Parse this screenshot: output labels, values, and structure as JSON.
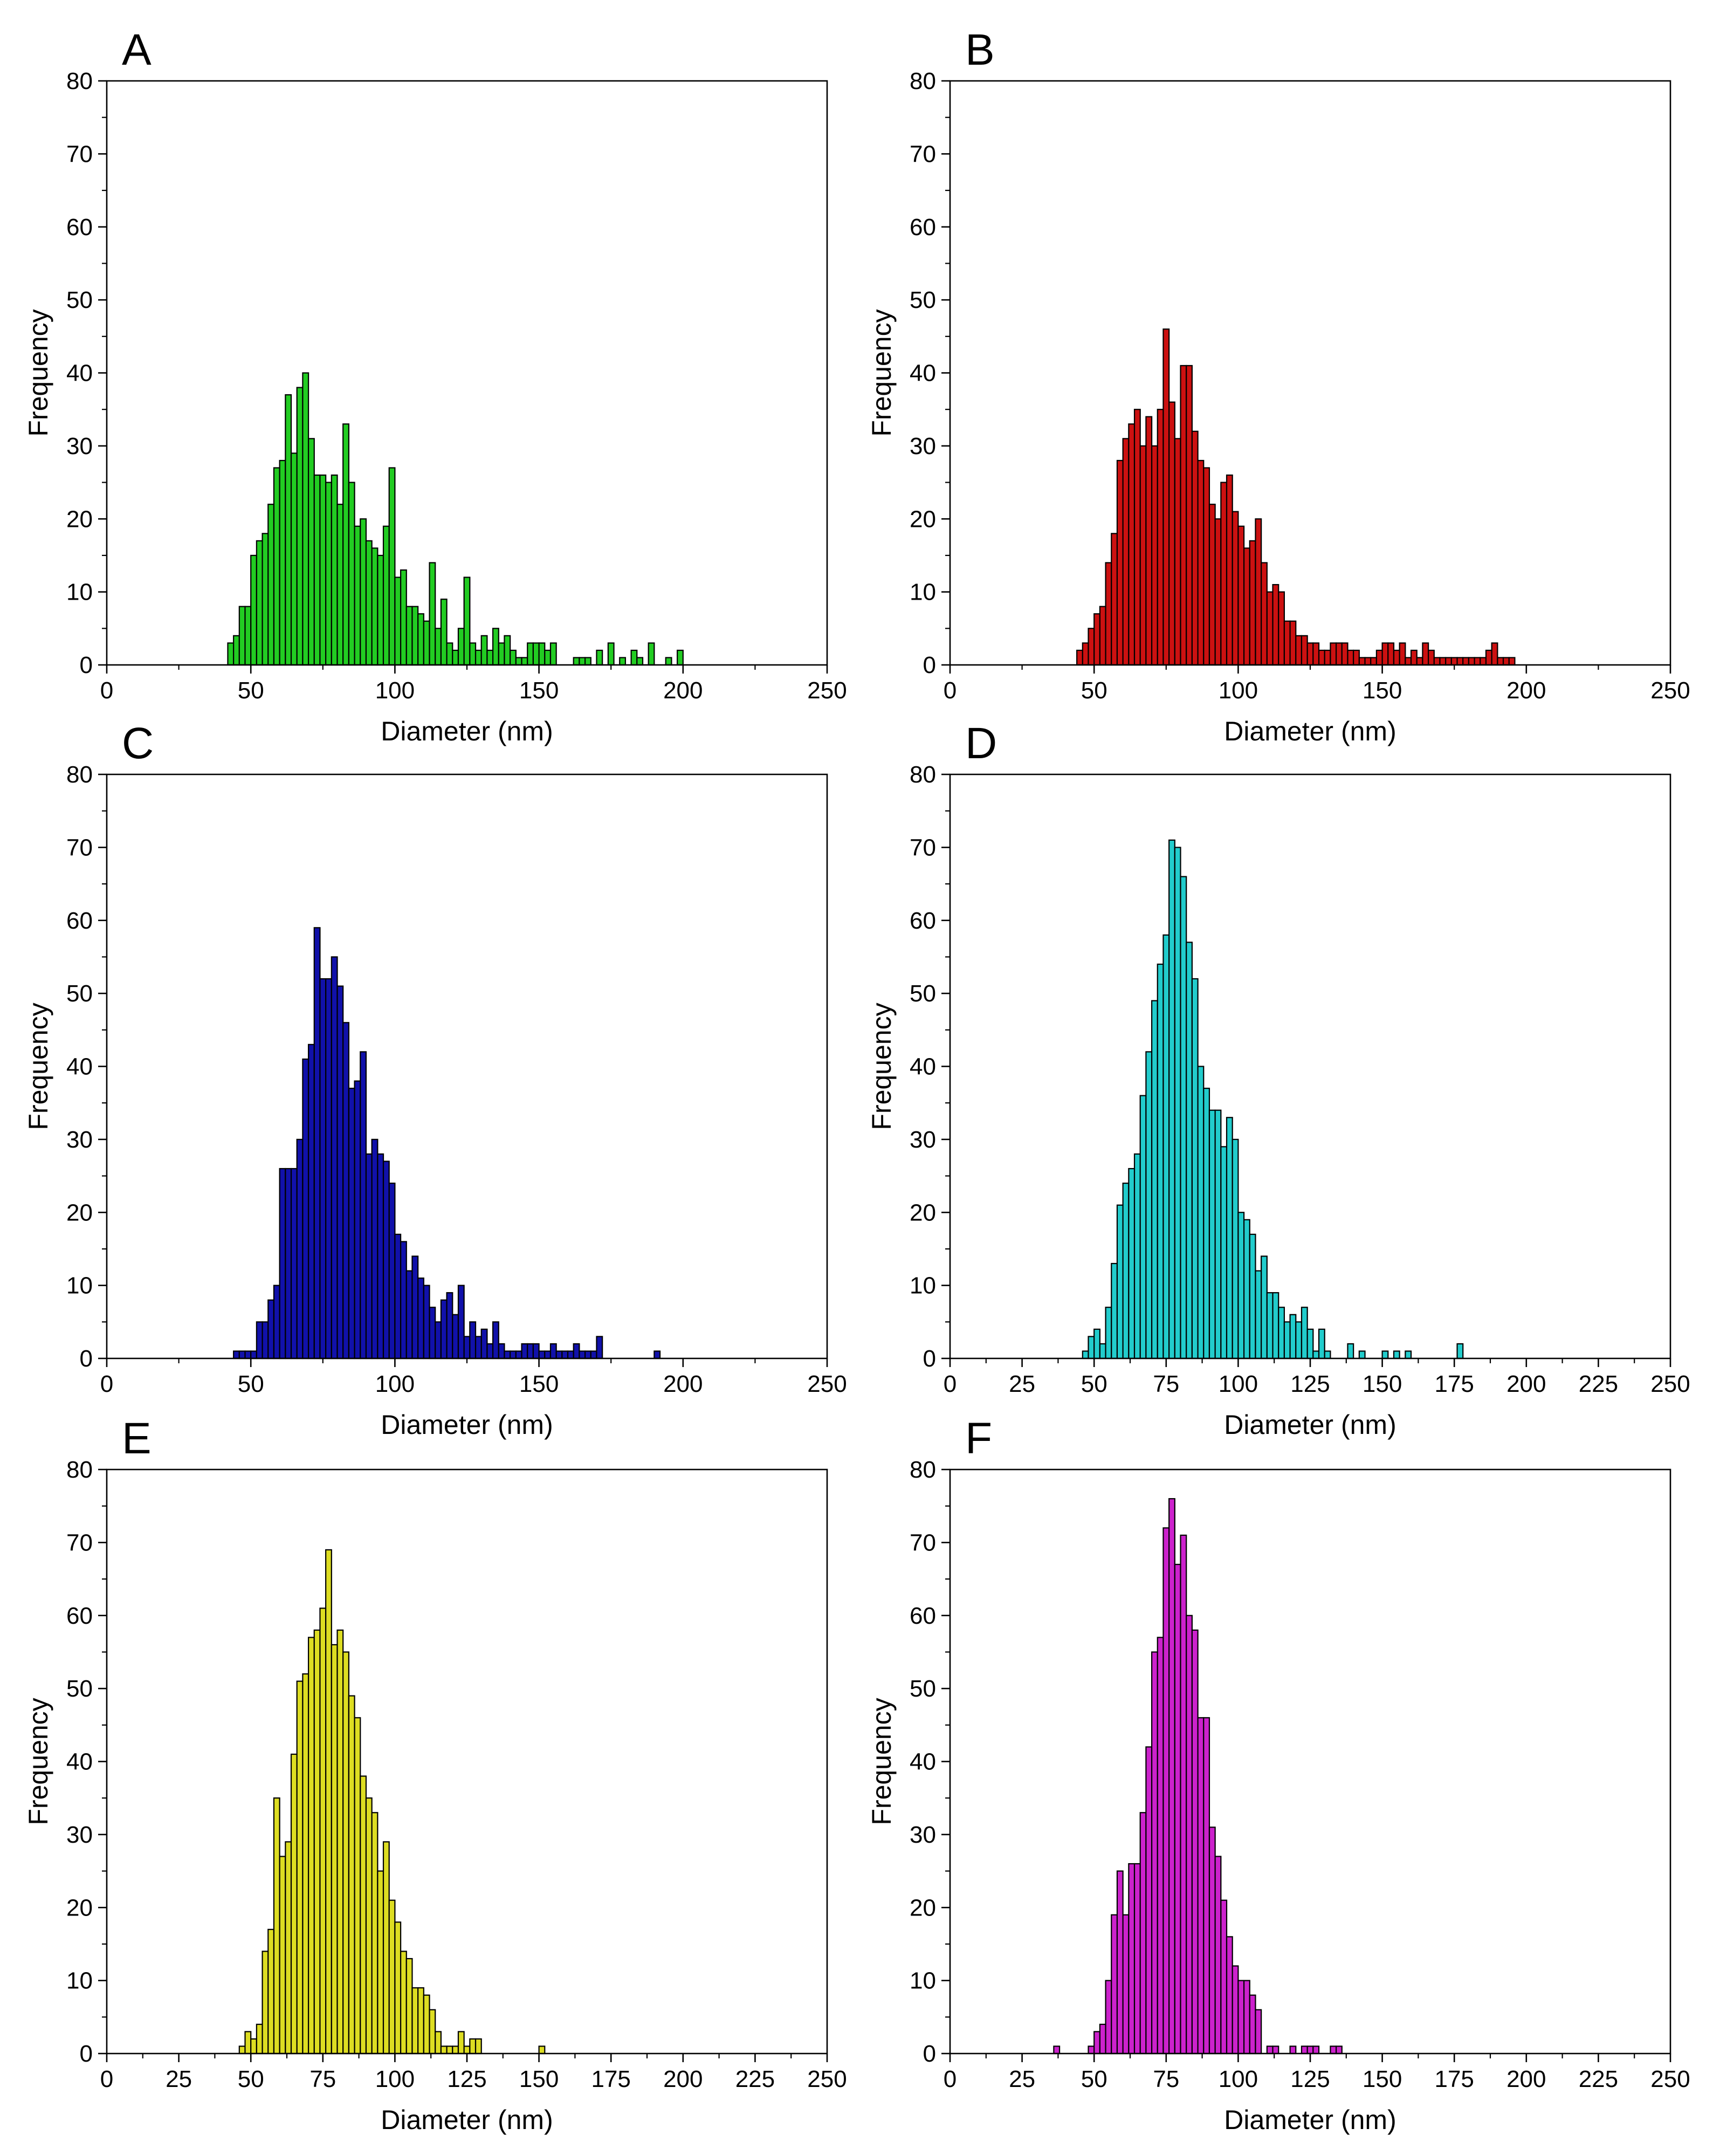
{
  "chart_data": [
    {
      "panel": "A",
      "type": "bar",
      "color": "#22cc22",
      "xlabel": "Diameter (nm)",
      "ylabel": "Frequency",
      "xlim": [
        0,
        250
      ],
      "ylim": [
        0,
        80
      ],
      "xticks": [
        0,
        50,
        100,
        150,
        200,
        250
      ],
      "yticks": [
        0,
        10,
        20,
        30,
        40,
        50,
        60,
        70,
        80
      ],
      "bin_width": 2,
      "x": [
        43,
        45,
        47,
        49,
        51,
        53,
        55,
        57,
        59,
        61,
        63,
        65,
        67,
        69,
        71,
        73,
        75,
        77,
        79,
        81,
        83,
        85,
        87,
        89,
        91,
        93,
        95,
        97,
        99,
        101,
        103,
        105,
        107,
        109,
        111,
        113,
        115,
        117,
        119,
        121,
        123,
        125,
        127,
        129,
        131,
        133,
        135,
        137,
        139,
        141,
        143,
        145,
        147,
        149,
        151,
        153,
        155,
        163,
        165,
        167,
        171,
        175,
        179,
        183,
        185,
        189,
        195,
        199
      ],
      "values": [
        3,
        4,
        8,
        8,
        15,
        17,
        18,
        22,
        27,
        28,
        37,
        29,
        38,
        40,
        31,
        26,
        26,
        25,
        26,
        22,
        33,
        25,
        19,
        20,
        17,
        16,
        15,
        19,
        27,
        12,
        13,
        8,
        8,
        7,
        6,
        14,
        5,
        9,
        3,
        2,
        5,
        12,
        3,
        2,
        4,
        2,
        5,
        3,
        4,
        2,
        1,
        1,
        3,
        3,
        3,
        2,
        3,
        1,
        1,
        1,
        2,
        3,
        1,
        2,
        1,
        3,
        1,
        2
      ]
    },
    {
      "panel": "B",
      "type": "bar",
      "color": "#cc1111",
      "xlabel": "Diameter (nm)",
      "ylabel": "Frequency",
      "xlim": [
        0,
        250
      ],
      "ylim": [
        0,
        80
      ],
      "xticks": [
        0,
        50,
        100,
        150,
        200,
        250
      ],
      "yticks": [
        0,
        10,
        20,
        30,
        40,
        50,
        60,
        70,
        80
      ],
      "bin_width": 2,
      "x": [
        45,
        47,
        49,
        51,
        53,
        55,
        57,
        59,
        61,
        63,
        65,
        67,
        69,
        71,
        73,
        75,
        77,
        79,
        81,
        83,
        85,
        87,
        89,
        91,
        93,
        95,
        97,
        99,
        101,
        103,
        105,
        107,
        109,
        111,
        113,
        115,
        117,
        119,
        121,
        123,
        125,
        127,
        129,
        131,
        133,
        135,
        137,
        139,
        141,
        143,
        145,
        147,
        149,
        151,
        153,
        155,
        157,
        159,
        161,
        163,
        165,
        167,
        169,
        171,
        173,
        175,
        177,
        179,
        181,
        183,
        185,
        187,
        189,
        191,
        193,
        195
      ],
      "values": [
        2,
        3,
        5,
        7,
        8,
        14,
        18,
        28,
        31,
        33,
        35,
        30,
        34,
        30,
        35,
        46,
        36,
        31,
        41,
        41,
        32,
        28,
        27,
        22,
        20,
        25,
        26,
        21,
        19,
        16,
        17,
        20,
        14,
        10,
        11,
        10,
        6,
        6,
        4,
        4,
        3,
        3,
        2,
        2,
        3,
        3,
        3,
        2,
        2,
        1,
        1,
        1,
        2,
        3,
        3,
        2,
        3,
        1,
        2,
        1,
        3,
        2,
        1,
        1,
        1,
        1,
        1,
        1,
        1,
        1,
        1,
        2,
        3,
        1,
        1,
        1
      ]
    },
    {
      "panel": "C",
      "type": "bar",
      "color": "#1111aa",
      "xlabel": "Diameter (nm)",
      "ylabel": "Frequency",
      "xlim": [
        0,
        250
      ],
      "ylim": [
        0,
        80
      ],
      "xticks": [
        0,
        50,
        100,
        150,
        200,
        250
      ],
      "yticks": [
        0,
        10,
        20,
        30,
        40,
        50,
        60,
        70,
        80
      ],
      "bin_width": 2,
      "x": [
        45,
        47,
        49,
        51,
        53,
        55,
        57,
        59,
        61,
        63,
        65,
        67,
        69,
        71,
        73,
        75,
        77,
        79,
        81,
        83,
        85,
        87,
        89,
        91,
        93,
        95,
        97,
        99,
        101,
        103,
        105,
        107,
        109,
        111,
        113,
        115,
        117,
        119,
        121,
        123,
        125,
        127,
        129,
        131,
        133,
        135,
        137,
        139,
        141,
        143,
        145,
        147,
        149,
        151,
        153,
        155,
        157,
        159,
        161,
        163,
        165,
        167,
        169,
        171,
        191
      ],
      "values": [
        1,
        1,
        1,
        1,
        5,
        5,
        8,
        10,
        26,
        26,
        26,
        30,
        41,
        43,
        59,
        52,
        52,
        55,
        51,
        46,
        37,
        38,
        42,
        28,
        30,
        28,
        27,
        24,
        17,
        16,
        12,
        14,
        11,
        10,
        7,
        5,
        8,
        9,
        6,
        10,
        3,
        5,
        3,
        4,
        2,
        5,
        2,
        1,
        1,
        1,
        2,
        2,
        2,
        1,
        1,
        2,
        1,
        1,
        1,
        2,
        1,
        1,
        1,
        3,
        1
      ]
    },
    {
      "panel": "D",
      "type": "bar",
      "color": "#22cccc",
      "xlabel": "Diameter (nm)",
      "ylabel": "Frequency",
      "xlim": [
        0,
        250
      ],
      "ylim": [
        0,
        80
      ],
      "xticks": [
        0,
        25,
        50,
        75,
        100,
        125,
        150,
        175,
        200,
        225,
        250
      ],
      "yticks": [
        0,
        10,
        20,
        30,
        40,
        50,
        60,
        70,
        80
      ],
      "bin_width": 2,
      "x": [
        47,
        49,
        51,
        53,
        55,
        57,
        59,
        61,
        63,
        65,
        67,
        69,
        71,
        73,
        75,
        77,
        79,
        81,
        83,
        85,
        87,
        89,
        91,
        93,
        95,
        97,
        99,
        101,
        103,
        105,
        107,
        109,
        111,
        113,
        115,
        117,
        119,
        121,
        123,
        125,
        127,
        129,
        131,
        139,
        143,
        151,
        155,
        159,
        177
      ],
      "values": [
        1,
        3,
        4,
        2,
        7,
        13,
        21,
        24,
        26,
        28,
        36,
        42,
        49,
        54,
        58,
        71,
        70,
        66,
        57,
        52,
        40,
        37,
        34,
        34,
        29,
        33,
        30,
        20,
        19,
        17,
        12,
        14,
        9,
        9,
        7,
        5,
        6,
        5,
        7,
        4,
        1,
        4,
        1,
        2,
        1,
        1,
        1,
        1,
        2
      ]
    },
    {
      "panel": "E",
      "type": "bar",
      "color": "#dddd22",
      "xlabel": "Diameter (nm)",
      "ylabel": "Frequency",
      "xlim": [
        0,
        250
      ],
      "ylim": [
        0,
        80
      ],
      "xticks": [
        0,
        25,
        50,
        75,
        100,
        125,
        150,
        175,
        200,
        225,
        250
      ],
      "yticks": [
        0,
        10,
        20,
        30,
        40,
        50,
        60,
        70,
        80
      ],
      "bin_width": 2,
      "x": [
        47,
        49,
        51,
        53,
        55,
        57,
        59,
        61,
        63,
        65,
        67,
        69,
        71,
        73,
        75,
        77,
        79,
        81,
        83,
        85,
        87,
        89,
        91,
        93,
        95,
        97,
        99,
        101,
        103,
        105,
        107,
        109,
        111,
        113,
        115,
        117,
        119,
        121,
        123,
        125,
        127,
        129,
        151
      ],
      "values": [
        1,
        3,
        2,
        4,
        14,
        17,
        35,
        27,
        29,
        41,
        51,
        52,
        57,
        58,
        61,
        69,
        56,
        58,
        55,
        49,
        46,
        38,
        35,
        33,
        25,
        29,
        21,
        18,
        14,
        13,
        9,
        9,
        8,
        6,
        3,
        1,
        1,
        1,
        3,
        1,
        2,
        2,
        1
      ]
    },
    {
      "panel": "F",
      "type": "bar",
      "color": "#cc22cc",
      "xlabel": "Diameter (nm)",
      "ylabel": "Frequency",
      "xlim": [
        0,
        250
      ],
      "ylim": [
        0,
        80
      ],
      "xticks": [
        0,
        25,
        50,
        75,
        100,
        125,
        150,
        175,
        200,
        225,
        250
      ],
      "yticks": [
        0,
        10,
        20,
        30,
        40,
        50,
        60,
        70,
        80
      ],
      "bin_width": 2,
      "x": [
        37,
        49,
        51,
        53,
        55,
        57,
        59,
        61,
        63,
        65,
        67,
        69,
        71,
        73,
        75,
        77,
        79,
        81,
        83,
        85,
        87,
        89,
        91,
        93,
        95,
        97,
        99,
        101,
        103,
        105,
        107,
        111,
        113,
        119,
        123,
        125,
        127,
        133,
        135
      ],
      "values": [
        1,
        1,
        3,
        4,
        10,
        19,
        25,
        19,
        26,
        26,
        33,
        42,
        55,
        57,
        72,
        76,
        67,
        71,
        60,
        58,
        46,
        46,
        31,
        27,
        21,
        16,
        12,
        10,
        10,
        8,
        6,
        1,
        1,
        1,
        1,
        1,
        1,
        1,
        1
      ]
    }
  ]
}
